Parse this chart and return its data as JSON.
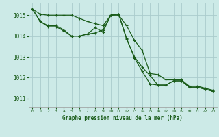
{
  "title": "Graphe pression niveau de la mer (hPa)",
  "background_color": "#cceae7",
  "grid_color": "#aacccc",
  "line_color": "#1a5c1a",
  "xlim": [
    -0.5,
    23.5
  ],
  "ylim": [
    1010.6,
    1015.6
  ],
  "xticks": [
    0,
    1,
    2,
    3,
    4,
    5,
    6,
    7,
    8,
    9,
    10,
    11,
    12,
    13,
    14,
    15,
    16,
    17,
    18,
    19,
    20,
    21,
    22,
    23
  ],
  "yticks": [
    1011,
    1012,
    1013,
    1014,
    1015
  ],
  "series1_x": [
    0,
    1,
    2,
    3,
    4,
    5,
    6,
    7,
    8,
    9,
    10,
    11,
    12,
    13,
    14,
    15,
    16,
    17,
    18,
    19,
    20,
    21,
    22,
    23
  ],
  "series1_y": [
    1015.3,
    1014.7,
    1014.5,
    1014.5,
    1014.3,
    1014.0,
    1014.0,
    1014.1,
    1014.15,
    1014.3,
    1015.0,
    1015.05,
    1013.85,
    1013.0,
    1012.5,
    1012.1,
    1011.65,
    1011.65,
    1011.85,
    1011.85,
    1011.55,
    1011.55,
    1011.45,
    1011.35
  ],
  "series2_x": [
    0,
    1,
    2,
    3,
    4,
    5,
    6,
    7,
    8,
    9,
    10,
    11,
    12,
    13,
    14,
    15,
    16,
    17,
    18,
    19,
    20,
    21,
    22,
    23
  ],
  "series2_y": [
    1015.3,
    1014.7,
    1014.45,
    1014.45,
    1014.25,
    1014.0,
    1014.0,
    1014.1,
    1014.4,
    1014.2,
    1015.0,
    1015.05,
    1013.9,
    1012.95,
    1012.3,
    1011.7,
    1011.65,
    1011.65,
    1011.85,
    1011.85,
    1011.55,
    1011.55,
    1011.45,
    1011.35
  ],
  "series3_x": [
    0,
    1,
    2,
    3,
    4,
    5,
    6,
    7,
    8,
    9,
    10,
    11,
    12,
    13,
    14,
    15,
    16,
    17,
    18,
    19,
    20,
    21,
    22,
    23
  ],
  "series3_y": [
    1015.3,
    1015.05,
    1015.0,
    1015.0,
    1015.0,
    1015.0,
    1014.85,
    1014.7,
    1014.6,
    1014.5,
    1015.0,
    1015.0,
    1014.5,
    1013.8,
    1013.3,
    1012.2,
    1012.15,
    1011.9,
    1011.9,
    1011.9,
    1011.6,
    1011.6,
    1011.5,
    1011.4
  ]
}
